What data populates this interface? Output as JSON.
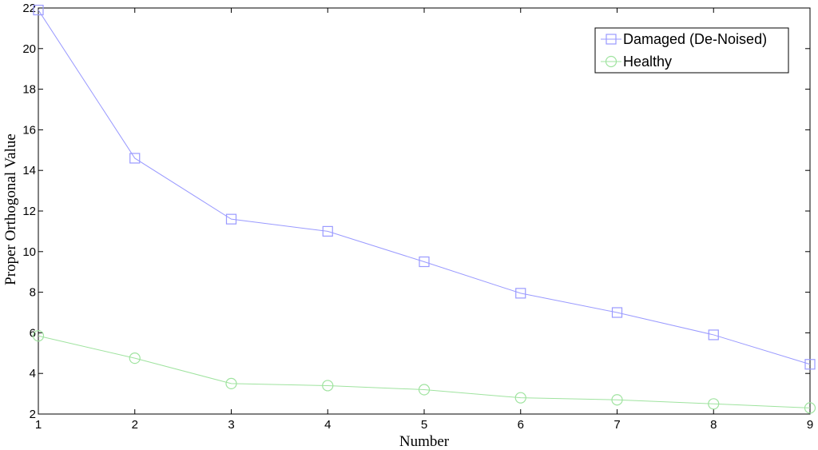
{
  "chart_data": {
    "type": "line",
    "title": "",
    "xlabel": "Number",
    "ylabel": "Proper Orthogonal Value",
    "xlim": [
      1,
      9
    ],
    "ylim": [
      2,
      22
    ],
    "xticks": [
      1,
      2,
      3,
      4,
      5,
      6,
      7,
      8,
      9
    ],
    "yticks": [
      2,
      4,
      6,
      8,
      10,
      12,
      14,
      16,
      18,
      20,
      22
    ],
    "grid": false,
    "legend_position": "top-right",
    "x": [
      1,
      2,
      3,
      4,
      5,
      6,
      7,
      8,
      9
    ],
    "series": [
      {
        "name": "Damaged (De-Noised)",
        "values": [
          21.9,
          14.6,
          11.6,
          11.0,
          9.5,
          7.95,
          7.0,
          5.9,
          4.45
        ],
        "color": "#9a9aff",
        "marker": "square"
      },
      {
        "name": "Healthy",
        "values": [
          5.85,
          4.75,
          3.5,
          3.4,
          3.2,
          2.8,
          2.7,
          2.5,
          2.3
        ],
        "color": "#9fe39f",
        "marker": "circle"
      }
    ]
  }
}
